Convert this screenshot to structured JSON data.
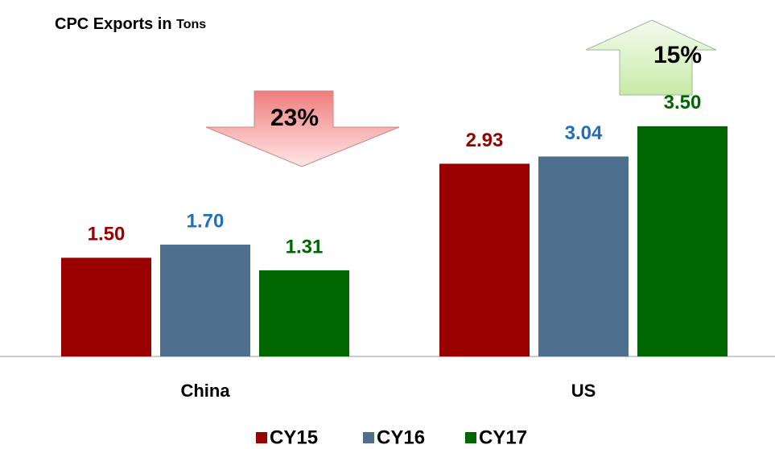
{
  "chart_data": {
    "type": "bar",
    "title": "CPC Exports in",
    "title_unit": "Tons",
    "categories": [
      "China",
      "US"
    ],
    "series": [
      {
        "name": "CY15",
        "color": "#990000",
        "values": [
          1.5,
          2.93
        ],
        "value_labels": [
          "1.50",
          "2.93"
        ]
      },
      {
        "name": "CY16",
        "color": "#4f6f8f",
        "values": [
          1.7,
          3.04
        ],
        "value_labels": [
          "1.70",
          "3.04"
        ]
      },
      {
        "name": "CY17",
        "color": "#006600",
        "values": [
          1.31,
          3.5
        ],
        "value_labels": [
          "1.31",
          "3.50"
        ]
      }
    ],
    "label_colors": [
      "#990000",
      "#1f6fbf",
      "#006600"
    ],
    "ylim": [
      0,
      4
    ],
    "annotations": [
      {
        "text": "23%",
        "direction": "down"
      },
      {
        "text": "15%",
        "direction": "up"
      }
    ],
    "legend": "bottom"
  }
}
